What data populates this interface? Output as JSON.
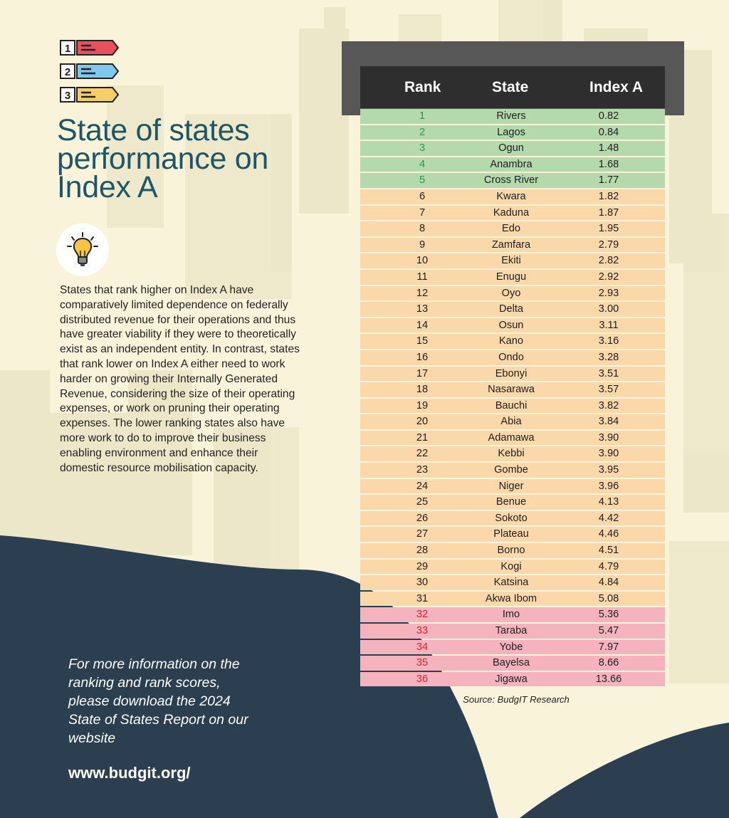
{
  "header": {
    "title": "State of states performance on Index A",
    "legend_labels": [
      "1",
      "2",
      "3"
    ]
  },
  "description": "States that rank higher on Index A have comparatively limited dependence on federally distributed revenue for their operations and thus have greater viability if they were to theoretically exist as an independent entity. In contrast, states that rank lower on Index A either need to work harder on growing their Internally Generated Revenue, considering the size of their operating expenses, or work on pruning their operating expenses. The lower ranking states also have more work to do to improve their business enabling environment and enhance their domestic resource mobilisation capacity.",
  "footer": {
    "more_info": "For more information on the ranking and rank scores, please download the 2024 State of States Report on our website",
    "website": "www.budgit.org/"
  },
  "colors": {
    "title": "#1d5668",
    "top_tier": "#b3d9ad",
    "mid_tier": "#fbd8aa",
    "bottom_tier": "#f5b3be",
    "top_rank_text": "#1f9e46",
    "bottom_rank_text": "#e2232c",
    "dark_wave": "#2b3f50"
  },
  "icons": {
    "legend": "numbered-list-icon",
    "bulb": "lightbulb-icon"
  },
  "chart_data": {
    "type": "table",
    "columns": [
      "Rank",
      "State",
      "Index A"
    ],
    "tiers": [
      {
        "name": "top",
        "ranks": [
          1,
          5
        ],
        "color": "#b3d9ad"
      },
      {
        "name": "middle",
        "ranks": [
          6,
          31
        ],
        "color": "#fbd8aa"
      },
      {
        "name": "bottom",
        "ranks": [
          32,
          36
        ],
        "color": "#f5b3be"
      }
    ],
    "rows": [
      {
        "rank": "1",
        "state": "Rivers",
        "index": "0.82"
      },
      {
        "rank": "2",
        "state": "Lagos",
        "index": "0.84"
      },
      {
        "rank": "3",
        "state": "Ogun",
        "index": "1.48"
      },
      {
        "rank": "4",
        "state": "Anambra",
        "index": "1.68"
      },
      {
        "rank": "5",
        "state": "Cross River",
        "index": "1.77"
      },
      {
        "rank": "6",
        "state": "Kwara",
        "index": "1.82"
      },
      {
        "rank": "7",
        "state": "Kaduna",
        "index": "1.87"
      },
      {
        "rank": "8",
        "state": "Edo",
        "index": "1.95"
      },
      {
        "rank": "9",
        "state": "Zamfara",
        "index": "2.79"
      },
      {
        "rank": "10",
        "state": "Ekiti",
        "index": "2.82"
      },
      {
        "rank": "11",
        "state": "Enugu",
        "index": "2.92"
      },
      {
        "rank": "12",
        "state": "Oyo",
        "index": "2.93"
      },
      {
        "rank": "13",
        "state": "Delta",
        "index": "3.00"
      },
      {
        "rank": "14",
        "state": "Osun",
        "index": "3.11"
      },
      {
        "rank": "15",
        "state": "Kano",
        "index": "3.16"
      },
      {
        "rank": "16",
        "state": "Ondo",
        "index": "3.28"
      },
      {
        "rank": "17",
        "state": "Ebonyi",
        "index": "3.51"
      },
      {
        "rank": "18",
        "state": "Nasarawa",
        "index": "3.57"
      },
      {
        "rank": "19",
        "state": "Bauchi",
        "index": "3.82"
      },
      {
        "rank": "20",
        "state": "Abia",
        "index": "3.84"
      },
      {
        "rank": "21",
        "state": "Adamawa",
        "index": "3.90"
      },
      {
        "rank": "22",
        "state": "Kebbi",
        "index": "3.90"
      },
      {
        "rank": "23",
        "state": "Gombe",
        "index": "3.95"
      },
      {
        "rank": "24",
        "state": "Niger",
        "index": "3.96"
      },
      {
        "rank": "25",
        "state": "Benue",
        "index": "4.13"
      },
      {
        "rank": "26",
        "state": "Sokoto",
        "index": "4.42"
      },
      {
        "rank": "27",
        "state": "Plateau",
        "index": "4.46"
      },
      {
        "rank": "28",
        "state": "Borno",
        "index": "4.51"
      },
      {
        "rank": "29",
        "state": "Kogi",
        "index": "4.79"
      },
      {
        "rank": "30",
        "state": "Katsina",
        "index": "4.84"
      },
      {
        "rank": "31",
        "state": "Akwa Ibom",
        "index": "5.08"
      },
      {
        "rank": "32",
        "state": "Imo",
        "index": "5.36"
      },
      {
        "rank": "33",
        "state": "Taraba",
        "index": "5.47"
      },
      {
        "rank": "34",
        "state": "Yobe",
        "index": "7.97"
      },
      {
        "rank": "35",
        "state": "Bayelsa",
        "index": "8.66"
      },
      {
        "rank": "36",
        "state": "Jigawa",
        "index": "13.66"
      }
    ],
    "source": "Source: BudgIT Research"
  }
}
